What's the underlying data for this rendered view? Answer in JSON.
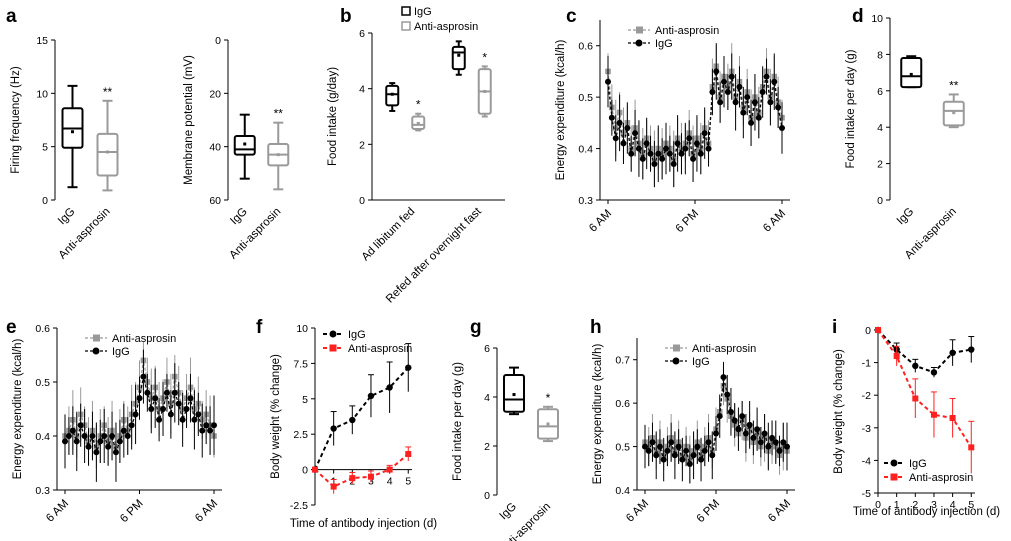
{
  "figure": {
    "panel_letters": [
      "a",
      "b",
      "c",
      "d",
      "e",
      "f",
      "g",
      "h",
      "i"
    ]
  },
  "chart_data": [
    {
      "panel": "a",
      "type": "box",
      "ylabel": "Firing frequency (Hz)",
      "ylim": [
        0,
        15
      ],
      "yticks": [
        0,
        5,
        10,
        15
      ],
      "categories": [
        "IgG",
        "Anti-asprosin"
      ],
      "boxes": [
        {
          "name": "IgG",
          "color": "#000000",
          "min": 1.2,
          "q1": 4.9,
          "median": 6.7,
          "q3": 8.6,
          "max": 10.7,
          "mean": 6.4
        },
        {
          "name": "Anti-asprosin",
          "color": "#9a9a9a",
          "min": 0.9,
          "q1": 2.3,
          "median": 4.5,
          "q3": 6.2,
          "max": 9.3,
          "mean": 4.5
        }
      ],
      "significance": [
        "",
        "**"
      ]
    },
    {
      "panel": "a2",
      "type": "box",
      "ylabel": "Membrane potential (mV)",
      "ylim": [
        0,
        60
      ],
      "yticks": [
        0,
        20,
        40,
        60
      ],
      "y_inverted": true,
      "categories": [
        "IgG",
        "Anti-asprosin"
      ],
      "boxes": [
        {
          "name": "IgG",
          "color": "#000000",
          "min": 28,
          "q1": 36,
          "median": 41,
          "q3": 43,
          "max": 52,
          "mean": 39
        },
        {
          "name": "Anti-asprosin",
          "color": "#9a9a9a",
          "min": 31,
          "q1": 39,
          "median": 43,
          "q3": 47,
          "max": 56,
          "mean": 43
        }
      ],
      "significance": [
        "",
        "**"
      ]
    },
    {
      "panel": "b",
      "type": "box",
      "ylabel": "Food intake (g/day)",
      "ylim": [
        0,
        6
      ],
      "yticks": [
        0,
        2,
        4,
        6
      ],
      "categories": [
        "Ad libitum fed",
        "Refed after overnight fast"
      ],
      "legend": [
        {
          "name": "IgG",
          "color": "#000000"
        },
        {
          "name": "Anti-asprosin",
          "color": "#9a9a9a"
        }
      ],
      "boxes": [
        {
          "group": 0,
          "name": "IgG",
          "color": "#000000",
          "min": 3.2,
          "q1": 3.4,
          "median": 3.8,
          "q3": 4.1,
          "max": 4.2,
          "mean": 3.8
        },
        {
          "group": 0,
          "name": "Anti-asprosin",
          "color": "#9a9a9a",
          "min": 2.5,
          "q1": 2.55,
          "median": 2.7,
          "q3": 3.0,
          "max": 3.1,
          "mean": 2.75
        },
        {
          "group": 1,
          "name": "IgG",
          "color": "#000000",
          "min": 4.5,
          "q1": 4.7,
          "median": 5.3,
          "q3": 5.5,
          "max": 5.7,
          "mean": 5.2
        },
        {
          "group": 1,
          "name": "Anti-asprosin",
          "color": "#9a9a9a",
          "min": 3.0,
          "q1": 3.1,
          "median": 3.9,
          "q3": 4.7,
          "max": 4.8,
          "mean": 3.9
        }
      ],
      "significance": [
        "",
        "*",
        "",
        "*"
      ]
    },
    {
      "panel": "c",
      "type": "line",
      "ylabel": "Energy expenditure (kcal/h)",
      "ylim": [
        0.3,
        0.65
      ],
      "yticks": [
        0.3,
        0.4,
        0.5,
        0.6
      ],
      "xticks": [
        "6 AM",
        "6 PM",
        "6 AM"
      ],
      "series": [
        {
          "name": "Anti-asprosin",
          "color": "#999999",
          "values": [
            0.55,
            0.48,
            0.44,
            0.47,
            0.43,
            0.45,
            0.4,
            0.44,
            0.41,
            0.39,
            0.42,
            0.4,
            0.38,
            0.4,
            0.39,
            0.41,
            0.4,
            0.38,
            0.42,
            0.4,
            0.41,
            0.43,
            0.39,
            0.42,
            0.4,
            0.44,
            0.41,
            0.52,
            0.56,
            0.5,
            0.54,
            0.52,
            0.55,
            0.5,
            0.53,
            0.48,
            0.51,
            0.46,
            0.5,
            0.47,
            0.52,
            0.55,
            0.5,
            0.54,
            0.49,
            0.46
          ]
        },
        {
          "name": "IgG",
          "color": "#000000",
          "values": [
            0.53,
            0.46,
            0.42,
            0.45,
            0.41,
            0.44,
            0.39,
            0.43,
            0.4,
            0.38,
            0.41,
            0.39,
            0.37,
            0.39,
            0.38,
            0.4,
            0.39,
            0.37,
            0.41,
            0.39,
            0.4,
            0.42,
            0.38,
            0.41,
            0.39,
            0.43,
            0.4,
            0.51,
            0.55,
            0.49,
            0.53,
            0.51,
            0.54,
            0.49,
            0.52,
            0.47,
            0.5,
            0.45,
            0.49,
            0.46,
            0.51,
            0.54,
            0.49,
            0.53,
            0.48,
            0.44
          ]
        }
      ]
    },
    {
      "panel": "d",
      "type": "box",
      "ylabel": "Food intake per day (g)",
      "ylim": [
        0,
        10
      ],
      "yticks": [
        0,
        2,
        4,
        6,
        8,
        10
      ],
      "categories": [
        "IgG",
        "Anti-asprosin"
      ],
      "boxes": [
        {
          "name": "IgG",
          "color": "#000000",
          "min": 6.2,
          "q1": 6.2,
          "median": 6.8,
          "q3": 7.8,
          "max": 7.9,
          "mean": 6.9
        },
        {
          "name": "Anti-asprosin",
          "color": "#9a9a9a",
          "min": 4.0,
          "q1": 4.1,
          "median": 4.9,
          "q3": 5.4,
          "max": 5.8,
          "mean": 4.8
        }
      ],
      "significance": [
        "",
        "**"
      ]
    },
    {
      "panel": "e",
      "type": "line",
      "ylabel": "Energy expenditure (kcal/h)",
      "ylim": [
        0.3,
        0.6
      ],
      "yticks": [
        0.3,
        0.4,
        0.5,
        0.6
      ],
      "xticks": [
        "6 AM",
        "6 PM",
        "6 AM"
      ],
      "series": [
        {
          "name": "Anti-asprosin",
          "color": "#999999",
          "values": [
            0.4,
            0.41,
            0.43,
            0.4,
            0.44,
            0.42,
            0.39,
            0.41,
            0.38,
            0.4,
            0.42,
            0.39,
            0.41,
            0.38,
            0.4,
            0.43,
            0.41,
            0.44,
            0.46,
            0.49,
            0.54,
            0.5,
            0.47,
            0.49,
            0.45,
            0.47,
            0.5,
            0.46,
            0.51,
            0.48,
            0.45,
            0.47,
            0.49,
            0.45,
            0.46,
            0.43,
            0.44,
            0.42,
            0.4
          ]
        },
        {
          "name": "IgG",
          "color": "#000000",
          "values": [
            0.39,
            0.4,
            0.41,
            0.39,
            0.42,
            0.4,
            0.38,
            0.4,
            0.37,
            0.39,
            0.4,
            0.38,
            0.4,
            0.37,
            0.39,
            0.41,
            0.4,
            0.42,
            0.44,
            0.47,
            0.51,
            0.48,
            0.45,
            0.47,
            0.43,
            0.45,
            0.48,
            0.44,
            0.48,
            0.46,
            0.43,
            0.45,
            0.47,
            0.43,
            0.44,
            0.41,
            0.42,
            0.41,
            0.42
          ]
        }
      ]
    },
    {
      "panel": "f",
      "type": "line",
      "ylabel": "Body weight (% change)",
      "xlabel": "Time of antibody injection (d)",
      "ylim": [
        -2.5,
        10
      ],
      "yticks": [
        -2.5,
        0,
        2.5,
        5,
        7.5,
        10
      ],
      "x": [
        0,
        1,
        2,
        3,
        4,
        5
      ],
      "xticks": [
        1,
        2,
        3,
        4,
        5
      ],
      "series": [
        {
          "name": "IgG",
          "color": "#000000",
          "values": [
            0,
            2.9,
            3.5,
            5.2,
            5.8,
            7.2
          ],
          "err": [
            0,
            1.2,
            1.0,
            1.5,
            1.8,
            1.7
          ]
        },
        {
          "name": "Anti-asprosin",
          "color": "#ff2020",
          "values": [
            0,
            -1.2,
            -0.6,
            -0.5,
            0.0,
            1.1
          ],
          "err": [
            0,
            0.5,
            0.4,
            0.4,
            0.3,
            0.5
          ]
        }
      ]
    },
    {
      "panel": "g",
      "type": "box",
      "ylabel": "Food intake per day (g)",
      "ylim": [
        0,
        6
      ],
      "yticks": [
        0,
        2,
        4,
        6
      ],
      "categories": [
        "IgG",
        "Anti-asprosin"
      ],
      "boxes": [
        {
          "name": "IgG",
          "color": "#000000",
          "min": 3.3,
          "q1": 3.4,
          "median": 3.9,
          "q3": 4.9,
          "max": 5.2,
          "mean": 4.1
        },
        {
          "name": "Anti-asprosin",
          "color": "#9a9a9a",
          "min": 2.2,
          "q1": 2.3,
          "median": 2.8,
          "q3": 3.5,
          "max": 3.6,
          "mean": 2.9
        }
      ],
      "significance": [
        "",
        "*"
      ]
    },
    {
      "panel": "h",
      "type": "line",
      "ylabel": "Energy expenditure (kcal/h)",
      "ylim": [
        0.4,
        0.75
      ],
      "yticks": [
        0.4,
        0.5,
        0.6,
        0.7
      ],
      "xticks": [
        "6 AM",
        "6 PM",
        "6 AM"
      ],
      "series": [
        {
          "name": "Anti-asprosin",
          "color": "#999999",
          "values": [
            0.51,
            0.5,
            0.52,
            0.49,
            0.51,
            0.48,
            0.5,
            0.52,
            0.49,
            0.51,
            0.48,
            0.5,
            0.47,
            0.49,
            0.51,
            0.48,
            0.5,
            0.52,
            0.49,
            0.54,
            0.58,
            0.64,
            0.61,
            0.57,
            0.55,
            0.53,
            0.56,
            0.52,
            0.54,
            0.51,
            0.53,
            0.5,
            0.52,
            0.49,
            0.51,
            0.5,
            0.48,
            0.5,
            0.49
          ]
        },
        {
          "name": "IgG",
          "color": "#000000",
          "values": [
            0.5,
            0.49,
            0.51,
            0.48,
            0.5,
            0.47,
            0.49,
            0.51,
            0.48,
            0.5,
            0.47,
            0.49,
            0.46,
            0.48,
            0.5,
            0.47,
            0.49,
            0.51,
            0.48,
            0.53,
            0.57,
            0.66,
            0.62,
            0.58,
            0.56,
            0.54,
            0.57,
            0.53,
            0.55,
            0.52,
            0.54,
            0.51,
            0.53,
            0.5,
            0.52,
            0.51,
            0.49,
            0.51,
            0.5
          ]
        }
      ]
    },
    {
      "panel": "i",
      "type": "line",
      "ylabel": "Body weight (% change)",
      "xlabel": "Time of antibody injection (d)",
      "ylim": [
        -5,
        0
      ],
      "yticks": [
        -5,
        -4,
        -3,
        -2,
        -1,
        0
      ],
      "x": [
        0,
        1,
        2,
        3,
        4,
        5
      ],
      "xticks": [
        0,
        1,
        2,
        3,
        4,
        5
      ],
      "series": [
        {
          "name": "IgG",
          "color": "#000000",
          "values": [
            0,
            -0.6,
            -1.1,
            -1.3,
            -0.7,
            -0.6
          ],
          "err": [
            0,
            0.2,
            0.2,
            0.15,
            0.4,
            0.4
          ]
        },
        {
          "name": "Anti-asprosin",
          "color": "#ff2020",
          "values": [
            0,
            -0.8,
            -2.1,
            -2.6,
            -2.7,
            -3.6
          ],
          "err": [
            0,
            0.3,
            0.6,
            0.7,
            0.6,
            0.8
          ]
        }
      ]
    }
  ]
}
